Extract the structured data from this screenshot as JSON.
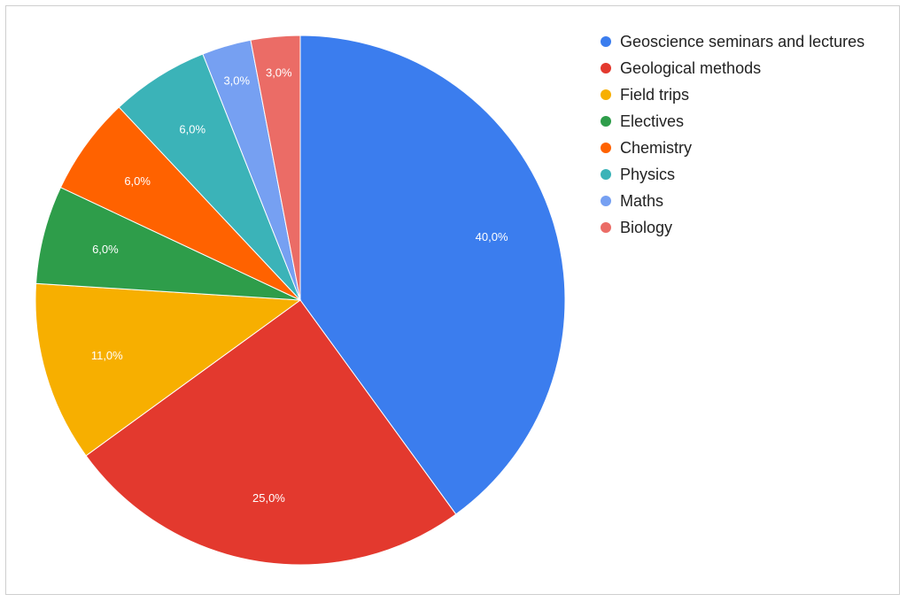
{
  "chart_data": {
    "type": "pie",
    "title": "",
    "legend_position": "right",
    "slices": [
      {
        "label": "Geoscience seminars and lectures",
        "value": 40.0,
        "display": "40,0%",
        "color": "#3B7DEE"
      },
      {
        "label": "Geological methods",
        "value": 25.0,
        "display": "25,0%",
        "color": "#E3392E"
      },
      {
        "label": "Field trips",
        "value": 11.0,
        "display": "11,0%",
        "color": "#F7AF00"
      },
      {
        "label": "Electives",
        "value": 6.0,
        "display": "6,0%",
        "color": "#2E9D4A"
      },
      {
        "label": "Chemistry",
        "value": 6.0,
        "display": "6,0%",
        "color": "#FF6200"
      },
      {
        "label": "Physics",
        "value": 6.0,
        "display": "6,0%",
        "color": "#3BB3B8"
      },
      {
        "label": "Maths",
        "value": 3.0,
        "display": "3,0%",
        "color": "#76A0F2"
      },
      {
        "label": "Biology",
        "value": 3.0,
        "display": "3,0%",
        "color": "#EB6C66"
      }
    ]
  }
}
